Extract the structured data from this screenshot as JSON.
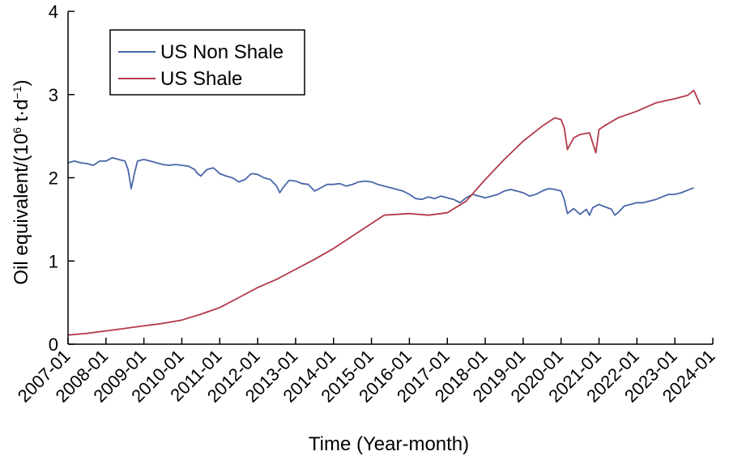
{
  "chart_data": {
    "type": "line",
    "xlabel": "Time (Year-month)",
    "ylabel_main": "Oil equivalent/(10",
    "ylabel_sup1": "6",
    "ylabel_mid": " t·d",
    "ylabel_sup2": "−1",
    "ylabel_end": ")",
    "ylim": [
      0,
      4
    ],
    "yticks": [
      "0",
      "1",
      "2",
      "3",
      "4"
    ],
    "xlim": [
      "2007-01",
      "2024-01"
    ],
    "xticks": [
      "2007-01",
      "2008-01",
      "2009-01",
      "2010-01",
      "2011-01",
      "2012-01",
      "2013-01",
      "2014-01",
      "2015-01",
      "2016-01",
      "2017-01",
      "2018-01",
      "2019-01",
      "2020-01",
      "2021-01",
      "2022-01",
      "2023-01",
      "2024-01"
    ],
    "legend_position": "top-left",
    "grid": false,
    "series": [
      {
        "name": "US Non Shale",
        "color": "#4a66a8",
        "points": [
          [
            "2007-01",
            2.18
          ],
          [
            "2007-03",
            2.2
          ],
          [
            "2007-05",
            2.18
          ],
          [
            "2007-07",
            2.17
          ],
          [
            "2007-09",
            2.15
          ],
          [
            "2007-11",
            2.2
          ],
          [
            "2008-01",
            2.2
          ],
          [
            "2008-03",
            2.24
          ],
          [
            "2008-05",
            2.22
          ],
          [
            "2008-07",
            2.2
          ],
          [
            "2008-08",
            2.1
          ],
          [
            "2008-09",
            1.87
          ],
          [
            "2008-10",
            2.05
          ],
          [
            "2008-11",
            2.2
          ],
          [
            "2009-01",
            2.22
          ],
          [
            "2009-03",
            2.2
          ],
          [
            "2009-05",
            2.18
          ],
          [
            "2009-07",
            2.16
          ],
          [
            "2009-09",
            2.15
          ],
          [
            "2009-11",
            2.16
          ],
          [
            "2010-01",
            2.15
          ],
          [
            "2010-03",
            2.14
          ],
          [
            "2010-05",
            2.1
          ],
          [
            "2010-06",
            2.05
          ],
          [
            "2010-07",
            2.02
          ],
          [
            "2010-09",
            2.1
          ],
          [
            "2010-11",
            2.12
          ],
          [
            "2011-01",
            2.05
          ],
          [
            "2011-03",
            2.02
          ],
          [
            "2011-05",
            2.0
          ],
          [
            "2011-07",
            1.95
          ],
          [
            "2011-09",
            1.98
          ],
          [
            "2011-11",
            2.05
          ],
          [
            "2012-01",
            2.04
          ],
          [
            "2012-03",
            2.0
          ],
          [
            "2012-05",
            1.98
          ],
          [
            "2012-07",
            1.9
          ],
          [
            "2012-08",
            1.82
          ],
          [
            "2012-09",
            1.88
          ],
          [
            "2012-11",
            1.97
          ],
          [
            "2013-01",
            1.96
          ],
          [
            "2013-03",
            1.93
          ],
          [
            "2013-05",
            1.92
          ],
          [
            "2013-07",
            1.84
          ],
          [
            "2013-09",
            1.88
          ],
          [
            "2013-11",
            1.92
          ],
          [
            "2014-01",
            1.92
          ],
          [
            "2014-03",
            1.93
          ],
          [
            "2014-05",
            1.9
          ],
          [
            "2014-07",
            1.92
          ],
          [
            "2014-09",
            1.95
          ],
          [
            "2014-11",
            1.96
          ],
          [
            "2015-01",
            1.95
          ],
          [
            "2015-03",
            1.92
          ],
          [
            "2015-05",
            1.9
          ],
          [
            "2015-07",
            1.88
          ],
          [
            "2015-09",
            1.86
          ],
          [
            "2015-11",
            1.84
          ],
          [
            "2016-01",
            1.8
          ],
          [
            "2016-03",
            1.75
          ],
          [
            "2016-05",
            1.74
          ],
          [
            "2016-07",
            1.77
          ],
          [
            "2016-09",
            1.75
          ],
          [
            "2016-11",
            1.78
          ],
          [
            "2017-01",
            1.76
          ],
          [
            "2017-03",
            1.74
          ],
          [
            "2017-05",
            1.7
          ],
          [
            "2017-07",
            1.76
          ],
          [
            "2017-09",
            1.8
          ],
          [
            "2017-11",
            1.78
          ],
          [
            "2018-01",
            1.76
          ],
          [
            "2018-03",
            1.78
          ],
          [
            "2018-05",
            1.8
          ],
          [
            "2018-07",
            1.84
          ],
          [
            "2018-09",
            1.86
          ],
          [
            "2018-11",
            1.84
          ],
          [
            "2019-01",
            1.82
          ],
          [
            "2019-03",
            1.78
          ],
          [
            "2019-05",
            1.8
          ],
          [
            "2019-07",
            1.84
          ],
          [
            "2019-09",
            1.87
          ],
          [
            "2019-11",
            1.86
          ],
          [
            "2020-01",
            1.84
          ],
          [
            "2020-02",
            1.74
          ],
          [
            "2020-03",
            1.57
          ],
          [
            "2020-05",
            1.63
          ],
          [
            "2020-07",
            1.56
          ],
          [
            "2020-09",
            1.62
          ],
          [
            "2020-10",
            1.55
          ],
          [
            "2020-11",
            1.64
          ],
          [
            "2021-01",
            1.68
          ],
          [
            "2021-03",
            1.65
          ],
          [
            "2021-05",
            1.62
          ],
          [
            "2021-06",
            1.55
          ],
          [
            "2021-07",
            1.58
          ],
          [
            "2021-09",
            1.66
          ],
          [
            "2021-11",
            1.68
          ],
          [
            "2022-01",
            1.7
          ],
          [
            "2022-03",
            1.7
          ],
          [
            "2022-05",
            1.72
          ],
          [
            "2022-07",
            1.74
          ],
          [
            "2022-09",
            1.77
          ],
          [
            "2022-11",
            1.8
          ],
          [
            "2023-01",
            1.8
          ],
          [
            "2023-03",
            1.82
          ],
          [
            "2023-05",
            1.85
          ],
          [
            "2023-07",
            1.88
          ]
        ]
      },
      {
        "name": "US Shale",
        "color": "#b23a4a",
        "points": [
          [
            "2007-01",
            0.11
          ],
          [
            "2007-07",
            0.13
          ],
          [
            "2008-01",
            0.16
          ],
          [
            "2008-07",
            0.19
          ],
          [
            "2009-01",
            0.22
          ],
          [
            "2009-07",
            0.25
          ],
          [
            "2010-01",
            0.29
          ],
          [
            "2010-07",
            0.36
          ],
          [
            "2011-01",
            0.44
          ],
          [
            "2011-07",
            0.56
          ],
          [
            "2012-01",
            0.68
          ],
          [
            "2012-07",
            0.78
          ],
          [
            "2013-01",
            0.9
          ],
          [
            "2013-07",
            1.02
          ],
          [
            "2014-01",
            1.15
          ],
          [
            "2014-07",
            1.3
          ],
          [
            "2015-01",
            1.45
          ],
          [
            "2015-05",
            1.55
          ],
          [
            "2015-09",
            1.56
          ],
          [
            "2016-01",
            1.57
          ],
          [
            "2016-07",
            1.55
          ],
          [
            "2017-01",
            1.58
          ],
          [
            "2017-07",
            1.72
          ],
          [
            "2018-01",
            1.98
          ],
          [
            "2018-07",
            2.22
          ],
          [
            "2019-01",
            2.44
          ],
          [
            "2019-07",
            2.62
          ],
          [
            "2019-11",
            2.72
          ],
          [
            "2020-01",
            2.7
          ],
          [
            "2020-02",
            2.6
          ],
          [
            "2020-03",
            2.34
          ],
          [
            "2020-05",
            2.48
          ],
          [
            "2020-07",
            2.52
          ],
          [
            "2020-10",
            2.54
          ],
          [
            "2020-12",
            2.3
          ],
          [
            "2021-01",
            2.58
          ],
          [
            "2021-03",
            2.63
          ],
          [
            "2021-07",
            2.72
          ],
          [
            "2022-01",
            2.8
          ],
          [
            "2022-07",
            2.9
          ],
          [
            "2023-01",
            2.95
          ],
          [
            "2023-05",
            2.99
          ],
          [
            "2023-07",
            3.05
          ],
          [
            "2023-09",
            2.88
          ]
        ]
      }
    ]
  }
}
